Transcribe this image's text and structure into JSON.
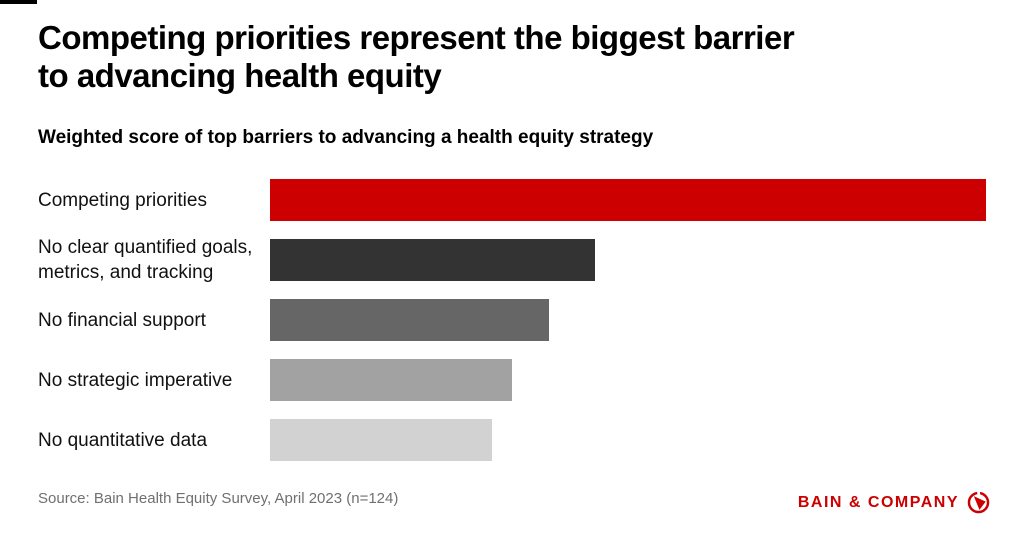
{
  "page": {
    "background": "#ffffff",
    "corner_mark_color": "#000000"
  },
  "header": {
    "title": "Competing priorities represent the biggest barrier\nto advancing health equity",
    "subtitle": "Weighted score of top barriers to advancing a health equity strategy"
  },
  "chart_data": {
    "type": "bar",
    "orientation": "horizontal",
    "title": "Weighted score of top barriers to advancing a health equity strategy",
    "categories": [
      "Competing priorities",
      "No clear quantified goals,\nmetrics, and tracking",
      "No financial support",
      "No strategic imperative",
      "No quantitative data"
    ],
    "values_pct_of_max": [
      100,
      45.4,
      39.0,
      33.8,
      31.0
    ],
    "bar_colors": [
      "#cc0000",
      "#333333",
      "#666666",
      "#a2a2a2",
      "#d2d2d2"
    ],
    "value_axis_visible": false,
    "data_labels_visible": false,
    "grid": false,
    "legend": false
  },
  "footer": {
    "source": "Source: Bain Health Equity Survey, April 2023 (n=124)",
    "logo_text": "BAIN & COMPANY",
    "logo_color": "#cc0000"
  }
}
